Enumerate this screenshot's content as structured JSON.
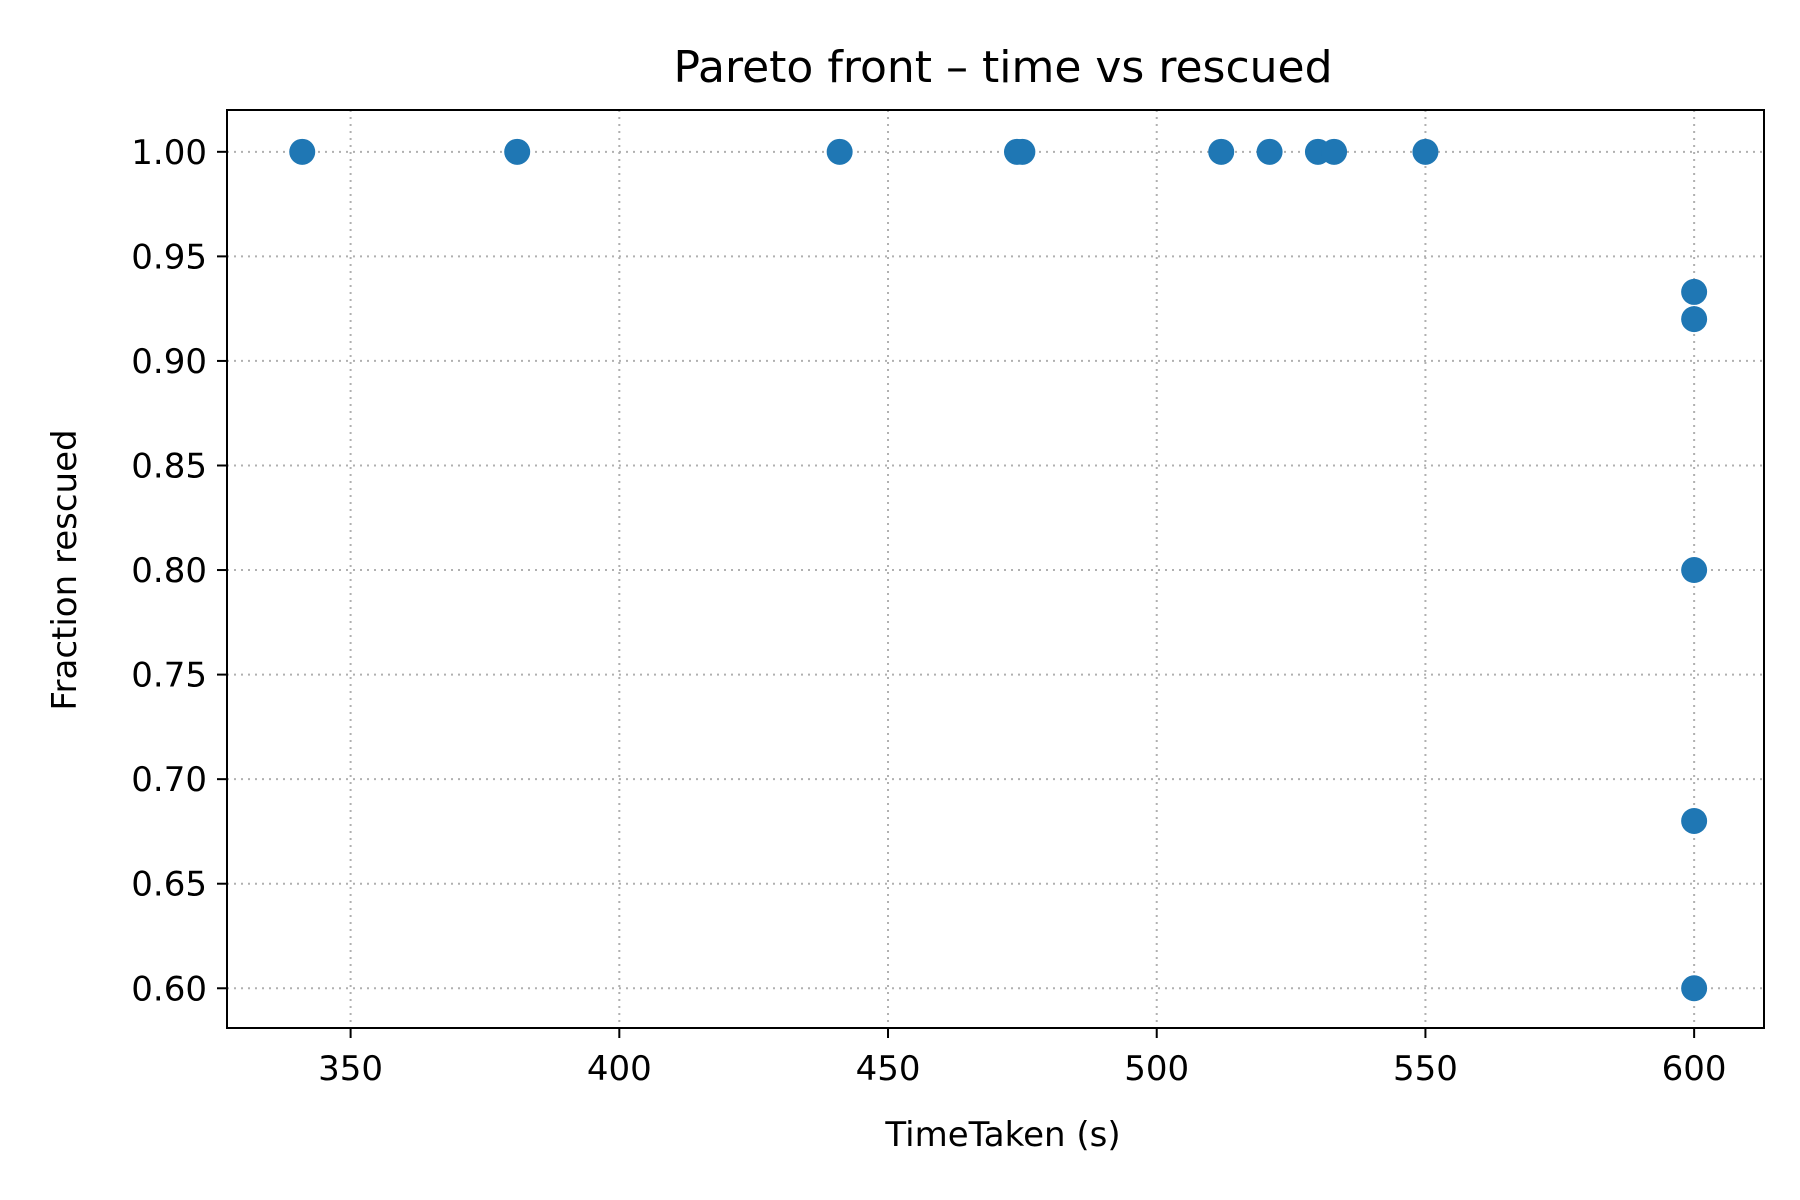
{
  "chart_data": {
    "type": "scatter",
    "title": "Pareto front – time vs rescued",
    "xlabel": "TimeTaken (s)",
    "ylabel": "Fraction rescued",
    "xlim": [
      327,
      613
    ],
    "ylim": [
      0.581,
      1.02
    ],
    "xticks": [
      350,
      400,
      450,
      500,
      550,
      600
    ],
    "yticks": [
      0.6,
      0.65,
      0.7,
      0.75,
      0.8,
      0.85,
      0.9,
      0.95,
      1.0
    ],
    "grid": true,
    "marker_color": "#1f77b4",
    "points": [
      {
        "x": 341,
        "y": 1.0
      },
      {
        "x": 381,
        "y": 1.0
      },
      {
        "x": 441,
        "y": 1.0
      },
      {
        "x": 474,
        "y": 1.0
      },
      {
        "x": 475,
        "y": 1.0
      },
      {
        "x": 512,
        "y": 1.0
      },
      {
        "x": 521,
        "y": 1.0
      },
      {
        "x": 530,
        "y": 1.0
      },
      {
        "x": 533,
        "y": 1.0
      },
      {
        "x": 550,
        "y": 1.0
      },
      {
        "x": 600,
        "y": 0.933
      },
      {
        "x": 600,
        "y": 0.92
      },
      {
        "x": 600,
        "y": 0.8
      },
      {
        "x": 600,
        "y": 0.68
      },
      {
        "x": 600,
        "y": 0.6
      }
    ]
  }
}
